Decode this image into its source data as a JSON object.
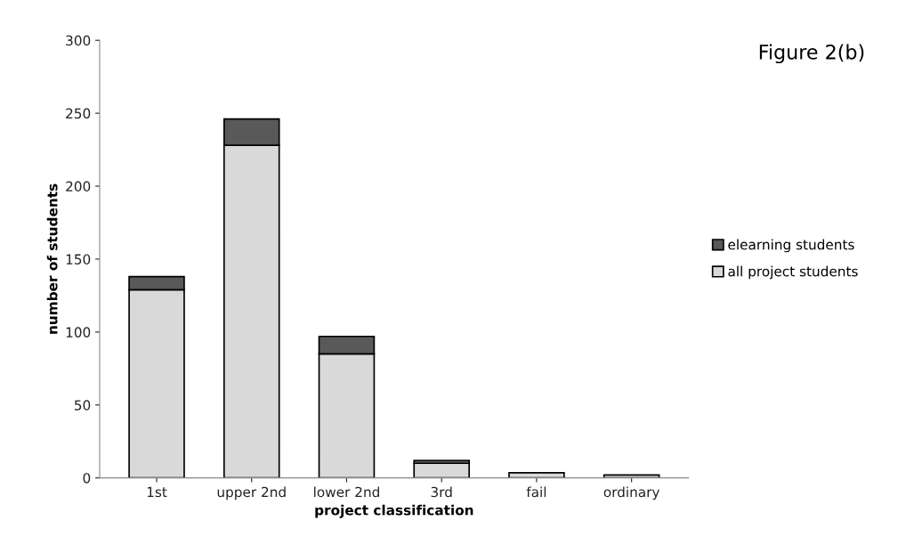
{
  "chart_data": {
    "type": "bar",
    "title": "Figure 2(b)",
    "xlabel": "project classification",
    "ylabel": "number of students",
    "categories": [
      "1st",
      "upper 2nd",
      "lower 2nd",
      "3rd",
      "fail",
      "ordinary"
    ],
    "stacked": true,
    "series": [
      {
        "name": "all project students",
        "color": "#d9d9d9",
        "values": [
          129,
          228,
          85,
          10,
          3.5,
          2
        ]
      },
      {
        "name": "elearning students",
        "color": "#595959",
        "values": [
          9,
          18,
          12,
          2,
          null,
          null
        ]
      }
    ],
    "ylim": [
      0,
      300
    ],
    "yticks": [
      0,
      50,
      100,
      150,
      200,
      250,
      300
    ],
    "grid": false,
    "legend": "right"
  }
}
